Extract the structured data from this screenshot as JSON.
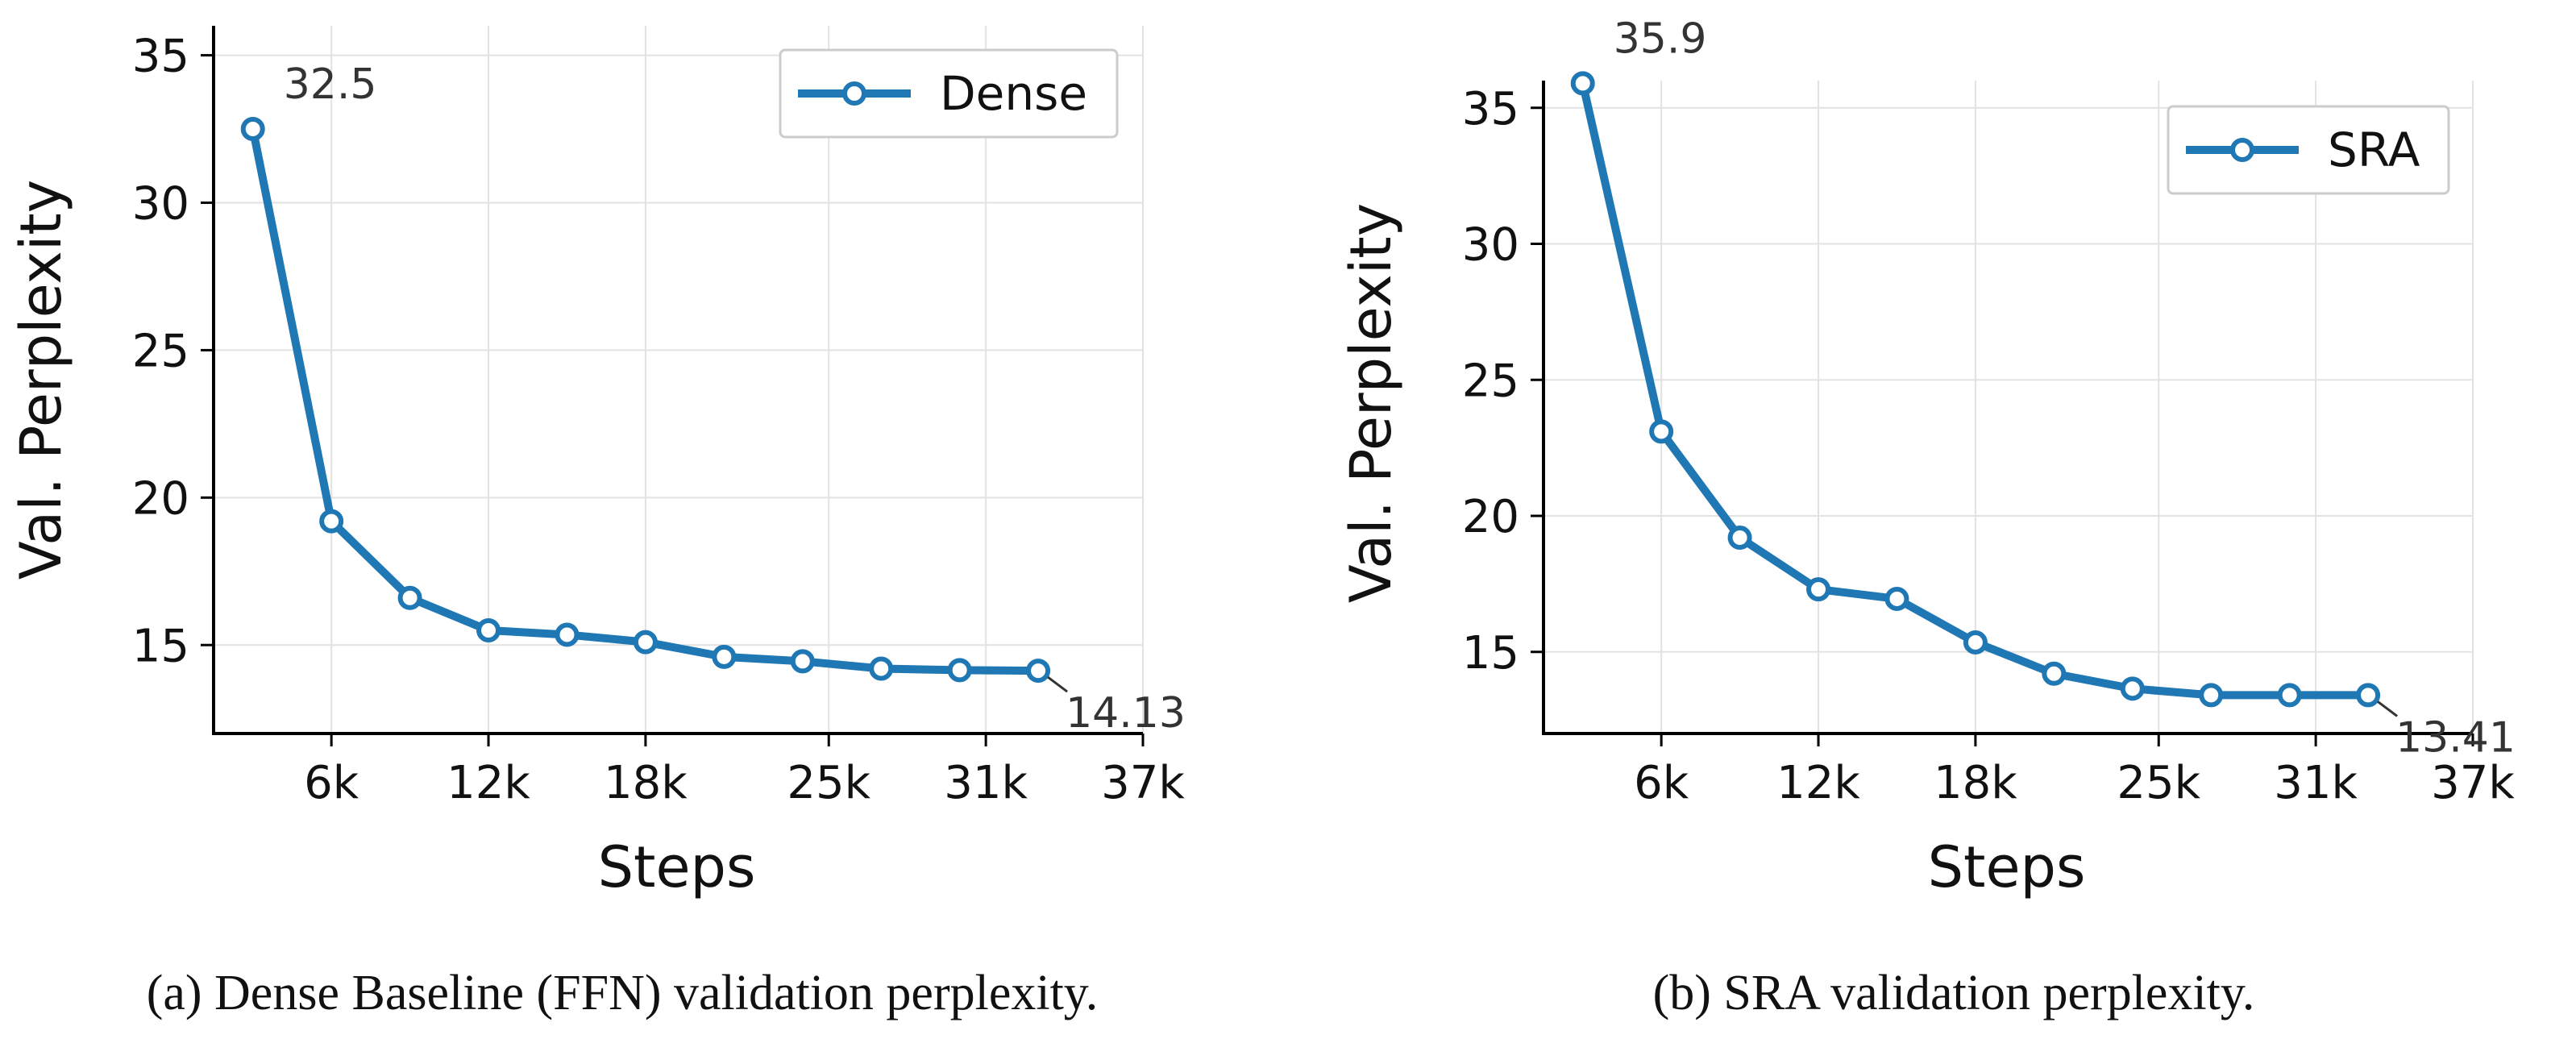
{
  "chart_data": [
    {
      "type": "line",
      "title": "",
      "caption": "(a) Dense Baseline (FFN) validation perplexity.",
      "xlabel": "Steps",
      "ylabel": "Val. Perplexity",
      "xlim": [
        1500,
        37000
      ],
      "ylim": [
        12,
        36
      ],
      "xticks": [
        6000,
        12000,
        18000,
        25000,
        31000,
        37000
      ],
      "xtick_labels": [
        "6k",
        "12k",
        "18k",
        "25k",
        "31k",
        "37k"
      ],
      "yticks": [
        15,
        20,
        25,
        30,
        35
      ],
      "ytick_labels": [
        "15",
        "20",
        "25",
        "30",
        35
      ],
      "grid": true,
      "legend_position": "top-right",
      "series": [
        {
          "name": "Dense",
          "color": "#1f77b4",
          "x": [
            3000,
            6000,
            9000,
            12000,
            15000,
            18000,
            21000,
            24000,
            27000,
            30000,
            33000
          ],
          "values": [
            32.5,
            19.2,
            16.6,
            15.5,
            15.35,
            15.1,
            14.6,
            14.45,
            14.2,
            14.15,
            14.13
          ]
        }
      ],
      "annotations": [
        {
          "text": "32.5",
          "x": 3000,
          "y": 32.5,
          "position": "above-right"
        },
        {
          "text": "14.13",
          "x": 33000,
          "y": 14.13,
          "position": "below-right"
        }
      ]
    },
    {
      "type": "line",
      "title": "",
      "caption": "(b) SRA validation perplexity.",
      "xlabel": "Steps",
      "ylabel": "Val. Perplexity",
      "xlim": [
        1500,
        37000
      ],
      "ylim": [
        12,
        36
      ],
      "xticks": [
        6000,
        12000,
        18000,
        25000,
        31000,
        37000
      ],
      "xtick_labels": [
        "6k",
        "12k",
        "18k",
        "25k",
        "31k",
        "37k"
      ],
      "yticks": [
        15,
        20,
        25,
        30,
        35
      ],
      "ytick_labels": [
        "15",
        "20",
        "25",
        "30",
        "35"
      ],
      "grid": true,
      "legend_position": "top-right",
      "series": [
        {
          "name": "SRA",
          "color": "#1f77b4",
          "x": [
            3000,
            6000,
            9000,
            12000,
            15000,
            18000,
            21000,
            24000,
            27000,
            30000,
            33000
          ],
          "values": [
            35.9,
            23.1,
            19.2,
            17.3,
            16.95,
            15.35,
            14.2,
            13.65,
            13.41,
            13.41,
            13.41
          ]
        }
      ],
      "annotations": [
        {
          "text": "35.9",
          "x": 3000,
          "y": 35.9,
          "position": "above-right"
        },
        {
          "text": "13.41",
          "x": 33000,
          "y": 13.41,
          "position": "below-right"
        }
      ]
    }
  ]
}
